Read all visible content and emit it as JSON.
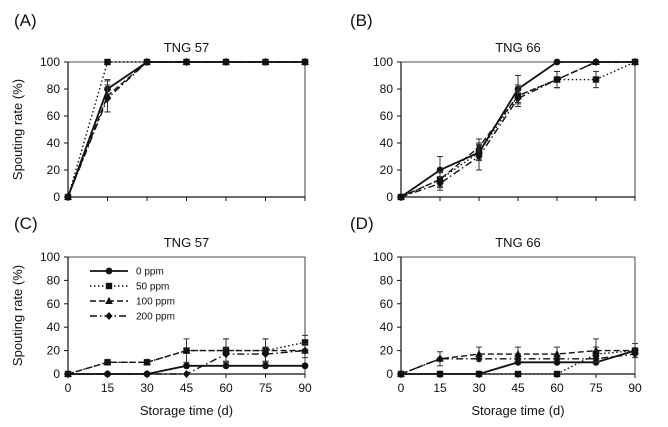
{
  "figure": {
    "x_axis_label": "Storage time (d)",
    "y_axis_label": "Spouting rate (%)"
  },
  "chart_data": [
    {
      "type": "line",
      "panel": "(A)",
      "title": "TNG 57",
      "ylabel": "Spouting rate (%)",
      "xlabel": "",
      "x_ticks": [],
      "y_ticks": [
        0,
        20,
        40,
        60,
        80,
        100
      ],
      "xlim": [
        0,
        90
      ],
      "ylim": [
        0,
        100
      ],
      "x": [
        0,
        15,
        30,
        45,
        60,
        75,
        90
      ],
      "series": [
        {
          "name": "0 ppm",
          "style": "solid",
          "marker": "circle",
          "values": [
            0,
            80,
            100,
            100,
            100,
            100,
            100
          ],
          "errors": [
            0,
            6,
            0,
            0,
            0,
            0,
            0
          ]
        },
        {
          "name": "50 ppm",
          "style": "dotted",
          "marker": "square",
          "values": [
            0,
            100,
            100,
            100,
            100,
            100,
            100
          ],
          "errors": [
            0,
            0,
            0,
            0,
            0,
            0,
            0
          ]
        },
        {
          "name": "100 ppm",
          "style": "dashed",
          "marker": "triangle",
          "values": [
            0,
            75,
            100,
            100,
            100,
            100,
            100
          ],
          "errors": [
            0,
            12,
            0,
            0,
            0,
            0,
            0
          ]
        },
        {
          "name": "200 ppm",
          "style": "dashdot",
          "marker": "diamond",
          "values": [
            0,
            73,
            100,
            100,
            100,
            100,
            100
          ],
          "errors": [
            0,
            10,
            0,
            0,
            0,
            0,
            0
          ]
        }
      ]
    },
    {
      "type": "line",
      "panel": "(B)",
      "title": "TNG 66",
      "ylabel": "",
      "xlabel": "",
      "x_ticks": [],
      "y_ticks": [
        0,
        20,
        40,
        60,
        80,
        100
      ],
      "xlim": [
        0,
        90
      ],
      "ylim": [
        0,
        100
      ],
      "x": [
        0,
        15,
        30,
        45,
        60,
        75,
        90
      ],
      "series": [
        {
          "name": "0 ppm",
          "style": "solid",
          "marker": "circle",
          "values": [
            0,
            20,
            33,
            80,
            100,
            100,
            100
          ],
          "errors": [
            0,
            10,
            5,
            10,
            0,
            0,
            0
          ]
        },
        {
          "name": "50 ppm",
          "style": "dotted",
          "marker": "square",
          "values": [
            0,
            13,
            33,
            75,
            87,
            87,
            100
          ],
          "errors": [
            0,
            5,
            6,
            8,
            6,
            6,
            0
          ]
        },
        {
          "name": "100 ppm",
          "style": "dashed",
          "marker": "triangle",
          "values": [
            0,
            13,
            37,
            75,
            87,
            100,
            100
          ],
          "errors": [
            0,
            6,
            6,
            6,
            6,
            0,
            0
          ]
        },
        {
          "name": "200 ppm",
          "style": "dashdot",
          "marker": "diamond",
          "values": [
            0,
            10,
            30,
            73,
            87,
            100,
            100
          ],
          "errors": [
            0,
            5,
            10,
            6,
            6,
            0,
            0
          ]
        }
      ]
    },
    {
      "type": "line",
      "panel": "(C)",
      "title": "TNG 57",
      "ylabel": "Spouting rate (%)",
      "xlabel": "Storage time (d)",
      "x_ticks": [
        0,
        15,
        30,
        45,
        60,
        75,
        90
      ],
      "y_ticks": [
        0,
        20,
        40,
        60,
        80,
        100
      ],
      "xlim": [
        0,
        90
      ],
      "ylim": [
        0,
        100
      ],
      "legend": "top-left",
      "x": [
        0,
        15,
        30,
        45,
        60,
        75,
        90
      ],
      "series": [
        {
          "name": "0 ppm",
          "style": "solid",
          "marker": "circle",
          "values": [
            0,
            0,
            0,
            7,
            7,
            7,
            7
          ],
          "errors": [
            0,
            0,
            0,
            0,
            0,
            0,
            0
          ]
        },
        {
          "name": "50 ppm",
          "style": "dotted",
          "marker": "square",
          "values": [
            0,
            10,
            10,
            20,
            20,
            20,
            27
          ],
          "errors": [
            0,
            0,
            0,
            10,
            10,
            10,
            6
          ]
        },
        {
          "name": "100 ppm",
          "style": "dashed",
          "marker": "triangle",
          "values": [
            0,
            10,
            10,
            20,
            20,
            20,
            20
          ],
          "errors": [
            0,
            0,
            0,
            0,
            10,
            10,
            0
          ]
        },
        {
          "name": "200 ppm",
          "style": "dashdot",
          "marker": "diamond",
          "values": [
            0,
            0,
            0,
            0,
            17,
            17,
            20
          ],
          "errors": [
            0,
            0,
            0,
            0,
            6,
            6,
            6
          ]
        }
      ]
    },
    {
      "type": "line",
      "panel": "(D)",
      "title": "TNG 66",
      "ylabel": "",
      "xlabel": "Storage time (d)",
      "x_ticks": [
        0,
        15,
        30,
        45,
        60,
        75,
        90
      ],
      "y_ticks": [
        0,
        20,
        40,
        60,
        80,
        100
      ],
      "xlim": [
        0,
        90
      ],
      "ylim": [
        0,
        100
      ],
      "x": [
        0,
        15,
        30,
        45,
        60,
        75,
        90
      ],
      "series": [
        {
          "name": "0 ppm",
          "style": "solid",
          "marker": "circle",
          "values": [
            0,
            0,
            0,
            10,
            10,
            10,
            20
          ],
          "errors": [
            0,
            0,
            0,
            0,
            0,
            0,
            0
          ]
        },
        {
          "name": "50 ppm",
          "style": "dotted",
          "marker": "square",
          "values": [
            0,
            0,
            0,
            0,
            0,
            17,
            20
          ],
          "errors": [
            0,
            0,
            0,
            0,
            0,
            6,
            0
          ]
        },
        {
          "name": "100 ppm",
          "style": "dashed",
          "marker": "triangle",
          "values": [
            0,
            13,
            17,
            17,
            17,
            20,
            20
          ],
          "errors": [
            0,
            6,
            6,
            6,
            6,
            10,
            6
          ]
        },
        {
          "name": "200 ppm",
          "style": "dashdot",
          "marker": "diamond",
          "values": [
            0,
            13,
            13,
            13,
            13,
            13,
            17
          ],
          "errors": [
            0,
            0,
            0,
            0,
            0,
            0,
            0
          ]
        }
      ]
    }
  ]
}
